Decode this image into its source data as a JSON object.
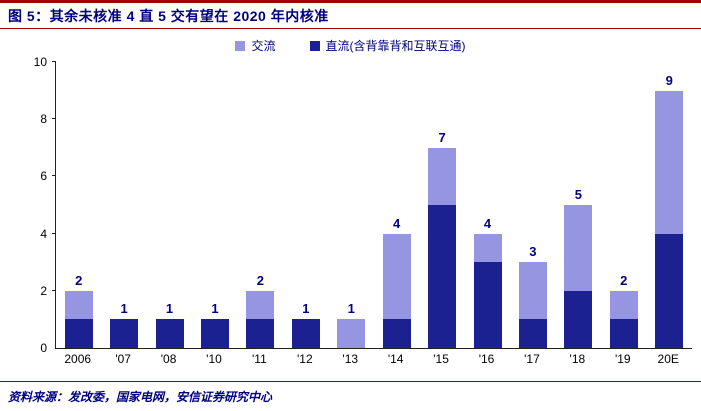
{
  "header": {
    "title": "图 5：其余未核准 4 直 5 交有望在 2020 年内核准"
  },
  "footer": {
    "source": "资料来源：发改委，国家电网，安信证券研究中心"
  },
  "colors": {
    "ac": "#9595e2",
    "dc": "#1b2190",
    "accent_line": "#a00000",
    "navy_text": "#000080",
    "axis": "#222222"
  },
  "chart_data": {
    "type": "bar",
    "stacked": true,
    "title": "图 5：其余未核准 4 直 5 交有望在 2020 年内核准",
    "categories": [
      "2006",
      "'07",
      "'08",
      "'10",
      "'11",
      "'12",
      "'13",
      "'14",
      "'15",
      "'16",
      "'17",
      "'18",
      "'19",
      "20E"
    ],
    "series": [
      {
        "name": "交流",
        "color_key": "ac",
        "values": [
          1,
          0,
          0,
          0,
          1,
          0,
          1,
          3,
          2,
          1,
          2,
          3,
          1,
          5
        ]
      },
      {
        "name": "直流(含背靠背和互联互通)",
        "color_key": "dc",
        "values": [
          1,
          1,
          1,
          1,
          1,
          1,
          0,
          1,
          5,
          3,
          1,
          2,
          1,
          4
        ]
      }
    ],
    "totals": [
      2,
      1,
      1,
      1,
      2,
      1,
      1,
      4,
      7,
      4,
      3,
      5,
      2,
      9
    ],
    "xlabel": "",
    "ylabel": "",
    "ylim": [
      0,
      10
    ],
    "yticks": [
      0,
      2,
      4,
      6,
      8,
      10
    ],
    "grid": false,
    "legend_position": "top"
  }
}
